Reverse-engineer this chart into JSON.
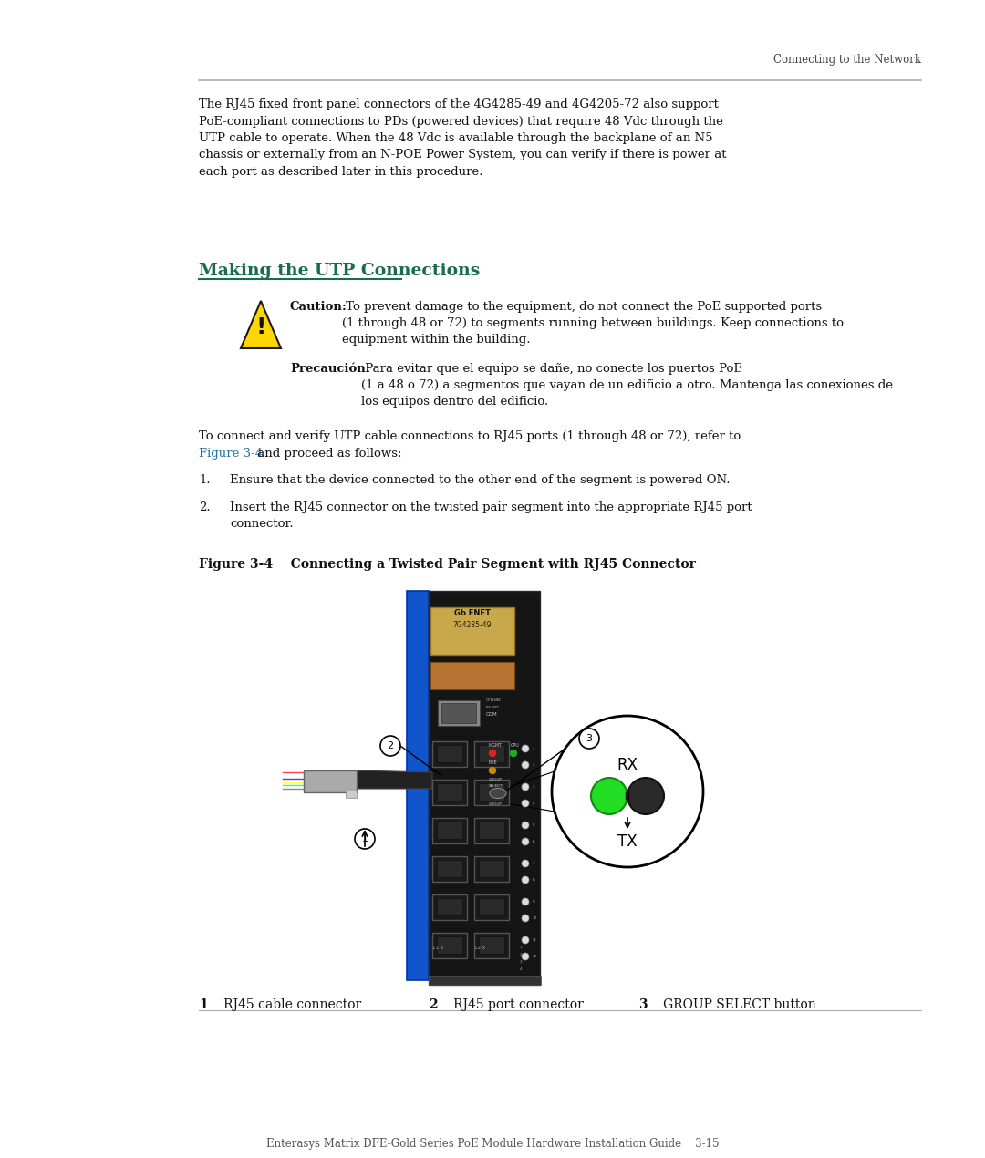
{
  "background_color": "#ffffff",
  "header_line_color": "#aaaaaa",
  "header_text": "Connecting to the Network",
  "body_text_1": "The RJ45 fixed front panel connectors of the 4G4285-49 and 4G4205-72 also support\nPoE-compliant connections to PDs (powered devices) that require 48 Vdc through the\nUTP cable to operate. When the 48 Vdc is available through the backplane of an N5\nchassis or externally from an N-POE Power System, you can verify if there is power at\neach port as described later in this procedure.",
  "section_title": "Making the UTP Connections",
  "section_title_color": "#1a6b52",
  "caution_label": "Caution:",
  "caution_rest": " To prevent damage to the equipment, do not connect the PoE supported ports\n(1 through 48 or 72) to segments running between buildings. Keep connections to\nequipment within the building.",
  "precaucion_label": "Precaución:",
  "precaucion_rest": " Para evitar que el equipo se dañe, no conecte los puertos PoE\n(1 a 48 o 72) a segmentos que vayan de un edificio a otro. Mantenga las conexiones de\nlos equipos dentro del edificio.",
  "para2_text": "To connect and verify UTP cable connections to RJ45 ports (1 through 48 or 72), refer to",
  "figure_link": "Figure 3-4",
  "figure_link_color": "#2471a3",
  "para2_end": " and proceed as follows:",
  "step1": "Ensure that the device connected to the other end of the segment is powered ON.",
  "step2": "Insert the RJ45 connector on the twisted pair segment into the appropriate RJ45 port\nconnector.",
  "fig_caption": "Figure 3-4    Connecting a Twisted Pair Segment with RJ45 Connector",
  "leg1_num": "1",
  "leg1_text": "   RJ45 cable connector",
  "leg2_num": "2",
  "leg2_text": "   RJ45 port connector",
  "leg3_num": "3",
  "leg3_text": "   GROUP SELECT button",
  "footer": "Enterasys Matrix DFE-Gold Series PoE Module Hardware Installation Guide    3-15",
  "footer_color": "#555555",
  "text_color": "#111111"
}
